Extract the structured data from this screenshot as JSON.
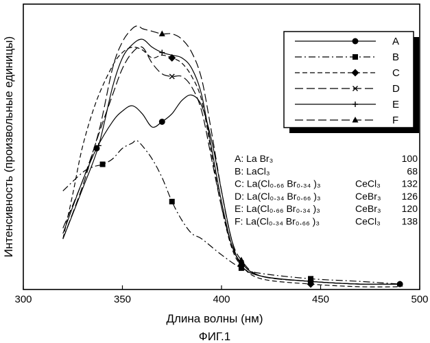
{
  "chart_data": {
    "type": "line",
    "title": "",
    "xlabel": "Длина волны (нм)",
    "ylabel": "Интенсивность (произвольные единицы)",
    "caption": "ФИГ.1",
    "xlim": [
      300,
      500
    ],
    "ylim": [
      0,
      100
    ],
    "xticks": [
      "300",
      "350",
      "400",
      "450",
      "500"
    ],
    "legend_position": "top-right",
    "series": [
      {
        "name": "A",
        "x": [
          320,
          330,
          337,
          345,
          350,
          355,
          360,
          365,
          370,
          375,
          380,
          385,
          390,
          395,
          400,
          405,
          410,
          420,
          445,
          470,
          490
        ],
        "y": [
          20,
          40,
          52,
          62,
          66,
          68,
          65,
          60,
          62,
          65,
          70,
          72,
          68,
          55,
          36,
          18,
          8,
          4,
          2,
          1,
          1
        ],
        "marker": "circle",
        "dash": "solid"
      },
      {
        "name": "B",
        "x": [
          320,
          330,
          335,
          340,
          345,
          350,
          355,
          357,
          360,
          365,
          370,
          375,
          380,
          385,
          390,
          400,
          410,
          420,
          445,
          470,
          490
        ],
        "y": [
          36,
          43,
          45,
          46,
          48,
          52,
          54,
          55,
          53,
          48,
          41,
          32,
          25,
          20,
          18,
          12,
          7,
          5,
          3,
          2,
          1
        ],
        "marker": "square",
        "dash": "dashdot"
      },
      {
        "name": "C",
        "x": [
          320,
          325,
          330,
          337,
          345,
          350,
          355,
          360,
          365,
          370,
          375,
          380,
          385,
          390,
          395,
          400,
          405,
          410,
          420,
          445,
          470,
          490
        ],
        "y": [
          18,
          35,
          53,
          70,
          83,
          88,
          90,
          89,
          86,
          87,
          86,
          84,
          79,
          70,
          50,
          30,
          15,
          8,
          3,
          1,
          0,
          0
        ],
        "marker": "diamond",
        "dash": "dashed"
      },
      {
        "name": "D",
        "x": [
          320,
          330,
          337,
          345,
          350,
          355,
          360,
          365,
          370,
          375,
          380,
          385,
          390,
          395,
          400,
          405,
          410,
          420,
          445,
          470,
          490
        ],
        "y": [
          18,
          38,
          55,
          72,
          82,
          88,
          90,
          84,
          80,
          79,
          79,
          75,
          66,
          48,
          30,
          16,
          9,
          4,
          2,
          1,
          1
        ],
        "marker": "x",
        "dash": "longdash"
      },
      {
        "name": "E",
        "x": [
          320,
          330,
          338,
          345,
          350,
          355,
          360,
          365,
          370,
          375,
          380,
          385,
          390,
          395,
          400,
          405,
          410,
          420,
          445,
          470,
          490
        ],
        "y": [
          18,
          37,
          53,
          75,
          86,
          91,
          93,
          90,
          88,
          87,
          86,
          82,
          72,
          52,
          32,
          16,
          9,
          4,
          2,
          1,
          1
        ],
        "marker": "plus",
        "dash": "solid"
      },
      {
        "name": "F",
        "x": [
          320,
          330,
          338,
          345,
          350,
          355,
          358,
          360,
          365,
          370,
          375,
          380,
          385,
          390,
          395,
          400,
          405,
          410,
          420,
          445,
          470,
          490
        ],
        "y": [
          22,
          40,
          58,
          82,
          92,
          97,
          98,
          97,
          96,
          95,
          95,
          93,
          88,
          78,
          58,
          36,
          18,
          10,
          4,
          2,
          1,
          1
        ],
        "marker": "triangle",
        "dash": "longdash"
      }
    ],
    "annotations": [
      {
        "label": "A: La Br₃",
        "activator": "",
        "value": "100"
      },
      {
        "label": "B: LaCl₃",
        "activator": "",
        "value": "68"
      },
      {
        "label": "C: La(Cl₀.₆₆ Br₀.₃₄ )₃",
        "activator": "CeCl₃",
        "value": "132"
      },
      {
        "label": "D: La(Cl₀.₃₄ Br₀.₆₆ )₃",
        "activator": "CeBr₃",
        "value": "126"
      },
      {
        "label": "E: La(Cl₀.₆₆ Br₀.₃₄ )₃",
        "activator": "CeBr₃",
        "value": "120"
      },
      {
        "label": "F: La(Cl₀.₃₄ Br₀.₆₆ )₃",
        "activator": "CeCl₃",
        "value": "138"
      }
    ]
  },
  "colors": {
    "ink": "#000000",
    "background": "#ffffff"
  }
}
